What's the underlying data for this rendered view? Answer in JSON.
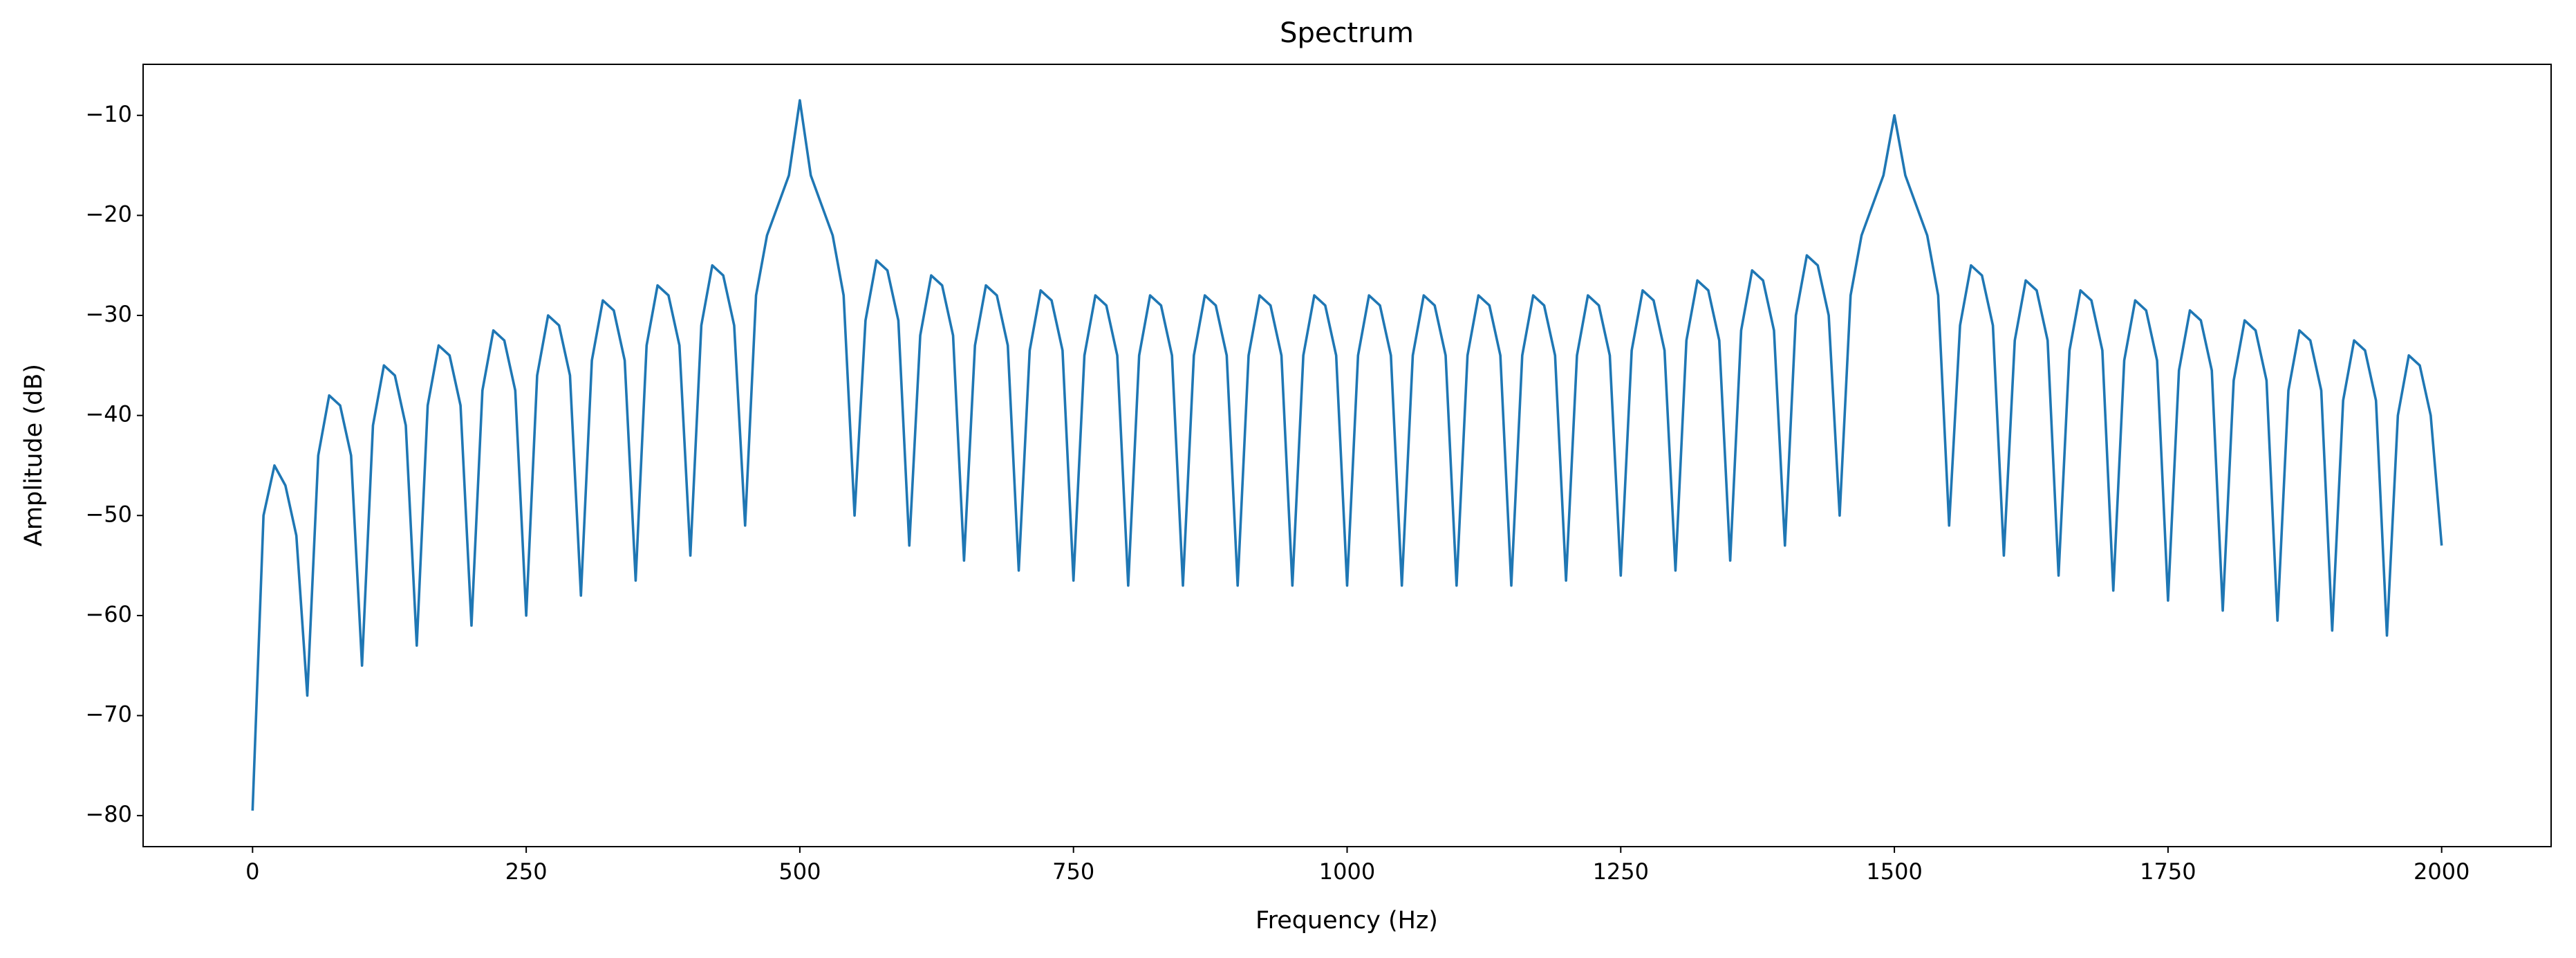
{
  "chart_data": {
    "type": "line",
    "title": "Spectrum",
    "x_label": "Frequency (Hz)",
    "y_label": "Amplitude (dB)",
    "color": "#1f77b4",
    "x": [
      0,
      10,
      20,
      30,
      40,
      50,
      60,
      70,
      80,
      90,
      100,
      110,
      120,
      130,
      140,
      150,
      160,
      170,
      180,
      190,
      200,
      210,
      220,
      230,
      240,
      250,
      260,
      270,
      280,
      290,
      300,
      310,
      320,
      330,
      340,
      350,
      360,
      370,
      380,
      390,
      400,
      410,
      420,
      430,
      440,
      450,
      460,
      470,
      480,
      490,
      500,
      510,
      520,
      530,
      540,
      550,
      560,
      570,
      580,
      590,
      600,
      610,
      620,
      630,
      640,
      650,
      660,
      670,
      680,
      690,
      700,
      710,
      720,
      730,
      740,
      750,
      760,
      770,
      780,
      790,
      800,
      810,
      820,
      830,
      840,
      850,
      860,
      870,
      880,
      890,
      900,
      910,
      920,
      930,
      940,
      950,
      960,
      970,
      980,
      990,
      1000,
      1010,
      1020,
      1030,
      1040,
      1050,
      1060,
      1070,
      1080,
      1090,
      1100,
      1110,
      1120,
      1130,
      1140,
      1150,
      1160,
      1170,
      1180,
      1190,
      1200,
      1210,
      1220,
      1230,
      1240,
      1250,
      1260,
      1270,
      1280,
      1290,
      1300,
      1310,
      1320,
      1330,
      1340,
      1350,
      1360,
      1370,
      1380,
      1390,
      1400,
      1410,
      1420,
      1430,
      1440,
      1450,
      1460,
      1470,
      1480,
      1490,
      1500,
      1510,
      1520,
      1530,
      1540,
      1550,
      1560,
      1570,
      1580,
      1590,
      1600,
      1610,
      1620,
      1630,
      1640,
      1650,
      1660,
      1670,
      1680,
      1690,
      1700,
      1710,
      1720,
      1730,
      1740,
      1750,
      1760,
      1770,
      1780,
      1790,
      1800,
      1810,
      1820,
      1830,
      1840,
      1850,
      1860,
      1870,
      1880,
      1890,
      1900,
      1910,
      1920,
      1930,
      1940,
      1950,
      1960,
      1970,
      1980,
      1990,
      2000
    ],
    "values": [
      -79.5,
      -50,
      -45,
      -47,
      -52,
      -68,
      -44,
      -38,
      -39,
      -44,
      -65,
      -41,
      -35,
      -36,
      -41,
      -63,
      -39,
      -33,
      -34,
      -39,
      -61,
      -37.5,
      -31.5,
      -32.5,
      -37.5,
      -60,
      -36,
      -30,
      -31,
      -36,
      -58,
      -34.5,
      -28.5,
      -29.5,
      -34.5,
      -56.5,
      -33,
      -27,
      -28,
      -33,
      -54,
      -31,
      -25,
      -26,
      -31,
      -51,
      -28,
      -22,
      -19,
      -16,
      -8.5,
      -16,
      -19,
      -22,
      -28,
      -50,
      -30.5,
      -24.5,
      -25.5,
      -30.5,
      -53,
      -32,
      -26,
      -27,
      -32,
      -54.5,
      -33,
      -27,
      -28,
      -33,
      -55.5,
      -33.5,
      -27.5,
      -28.5,
      -33.5,
      -56.5,
      -34,
      -28,
      -29,
      -34,
      -57,
      -34,
      -28,
      -29,
      -34,
      -57,
      -34,
      -28,
      -29,
      -34,
      -57,
      -34,
      -28,
      -29,
      -34,
      -57,
      -34,
      -28,
      -29,
      -34,
      -57,
      -34,
      -28,
      -29,
      -34,
      -57,
      -34,
      -28,
      -29,
      -34,
      -57,
      -34,
      -28,
      -29,
      -34,
      -57,
      -34,
      -28,
      -29,
      -34,
      -56.5,
      -34,
      -28,
      -29,
      -34,
      -56,
      -33.5,
      -27.5,
      -28.5,
      -33.5,
      -55.5,
      -32.5,
      -26.5,
      -27.5,
      -32.5,
      -54.5,
      -31.5,
      -25.5,
      -26.5,
      -31.5,
      -53,
      -30,
      -24,
      -25,
      -30,
      -50,
      -28,
      -22,
      -19,
      -16,
      -10,
      -16,
      -19,
      -22,
      -28,
      -51,
      -31,
      -25,
      -26,
      -31,
      -54,
      -32.5,
      -26.5,
      -27.5,
      -32.5,
      -56,
      -33.5,
      -27.5,
      -28.5,
      -33.5,
      -57.5,
      -34.5,
      -28.5,
      -29.5,
      -34.5,
      -58.5,
      -35.5,
      -29.5,
      -30.5,
      -35.5,
      -59.5,
      -36.5,
      -30.5,
      -31.5,
      -36.5,
      -60.5,
      -37.5,
      -31.5,
      -32.5,
      -37.5,
      -61.5,
      -38.5,
      -32.5,
      -33.5,
      -38.5,
      -62,
      -40,
      -34,
      -35,
      -40,
      -53
    ],
    "xlim": [
      -100,
      2100
    ],
    "ylim": [
      -83.1,
      -4.9
    ],
    "xticks": [
      0,
      250,
      500,
      750,
      1000,
      1250,
      1500,
      1750,
      2000
    ],
    "yticks": [
      {
        "value": -80,
        "label": "−80"
      },
      {
        "value": -70,
        "label": "−70"
      },
      {
        "value": -60,
        "label": "−60"
      },
      {
        "value": -50,
        "label": "−50"
      },
      {
        "value": -40,
        "label": "−40"
      },
      {
        "value": -30,
        "label": "−30"
      },
      {
        "value": -20,
        "label": "−20"
      },
      {
        "value": -10,
        "label": "−10"
      }
    ]
  }
}
